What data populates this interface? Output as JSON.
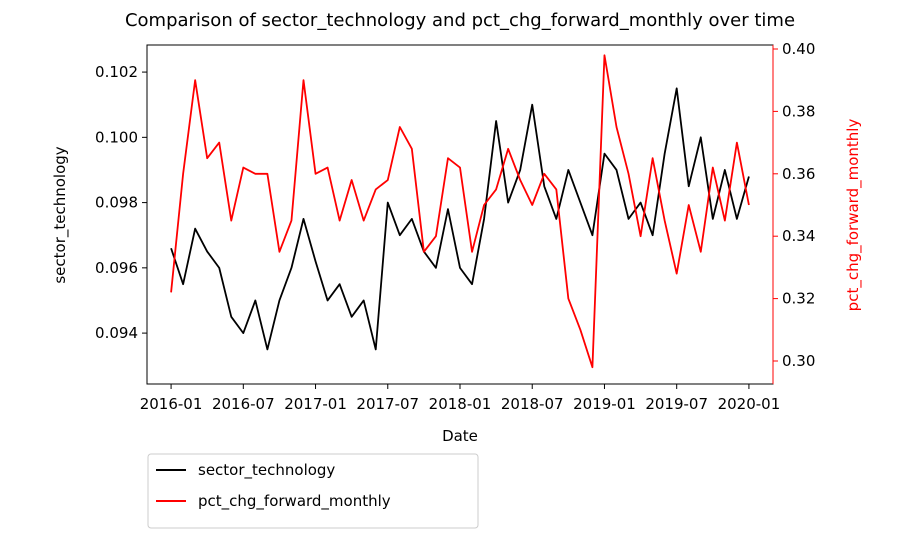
{
  "chart_data": {
    "type": "line",
    "title": "Comparison of sector_technology and pct_chg_forward_monthly over time",
    "x_label": "Date",
    "y_label": "sector_technology",
    "y2_label": "pct_chg_forward_monthly",
    "x": [
      "2016-01",
      "2016-02",
      "2016-03",
      "2016-04",
      "2016-05",
      "2016-06",
      "2016-07",
      "2016-08",
      "2016-09",
      "2016-10",
      "2016-11",
      "2016-12",
      "2017-01",
      "2017-02",
      "2017-03",
      "2017-04",
      "2017-05",
      "2017-06",
      "2017-07",
      "2017-08",
      "2017-09",
      "2017-10",
      "2017-11",
      "2017-12",
      "2018-01",
      "2018-02",
      "2018-03",
      "2018-04",
      "2018-05",
      "2018-06",
      "2018-07",
      "2018-08",
      "2018-09",
      "2018-10",
      "2018-11",
      "2018-12",
      "2019-01",
      "2019-02",
      "2019-03",
      "2019-04",
      "2019-05",
      "2019-06",
      "2019-07",
      "2019-08",
      "2019-09",
      "2019-10",
      "2019-11",
      "2019-12",
      "2020-01"
    ],
    "xlim": [
      "2015-11",
      "2020-03"
    ],
    "xticks": [
      "2016-01",
      "2016-07",
      "2017-01",
      "2017-07",
      "2018-01",
      "2018-07",
      "2019-01",
      "2019-07",
      "2020-01"
    ],
    "ylim": [
      0.09244,
      0.10283
    ],
    "yticks": [
      0.094,
      0.096,
      0.098,
      {
        "value": 0.1,
        "label": "0.100"
      },
      0.102
    ],
    "y2lim": [
      0.29263,
      0.40128
    ],
    "y2ticks": [
      {
        "value": 0.3,
        "label": "0.30"
      },
      0.32,
      0.34,
      0.36,
      0.38,
      {
        "value": 0.4,
        "label": "0.40"
      }
    ],
    "y2_color": "#ff0000",
    "legend": "below-left",
    "series": [
      {
        "name": "sector_technology",
        "color": "#000000",
        "axis": "y",
        "values": [
          0.0966,
          0.0955,
          0.0972,
          0.0965,
          0.096,
          0.0945,
          0.094,
          0.095,
          0.0935,
          0.095,
          0.096,
          0.0975,
          0.0962,
          0.095,
          0.0955,
          0.0945,
          0.095,
          0.0935,
          0.098,
          0.097,
          0.0975,
          0.0965,
          0.096,
          0.0978,
          0.096,
          0.0955,
          0.0975,
          0.1005,
          0.098,
          0.099,
          0.101,
          0.0985,
          0.0975,
          0.099,
          0.098,
          0.097,
          0.0995,
          0.099,
          0.0975,
          0.098,
          0.097,
          0.0995,
          0.1015,
          0.0985,
          0.1,
          0.0975,
          0.099,
          0.0975,
          0.0988
        ]
      },
      {
        "name": "pct_chg_forward_monthly",
        "color": "#ff0000",
        "axis": "y2",
        "values": [
          0.322,
          0.36,
          0.39,
          0.365,
          0.37,
          0.345,
          0.362,
          0.36,
          0.36,
          0.335,
          0.345,
          0.39,
          0.36,
          0.362,
          0.345,
          0.358,
          0.345,
          0.355,
          0.358,
          0.375,
          0.368,
          0.335,
          0.34,
          0.365,
          0.362,
          0.335,
          0.35,
          0.355,
          0.368,
          0.358,
          0.35,
          0.36,
          0.355,
          0.32,
          0.31,
          0.298,
          0.398,
          0.375,
          0.36,
          0.34,
          0.365,
          0.345,
          0.328,
          0.35,
          0.335,
          0.362,
          0.345,
          0.37,
          0.35
        ]
      }
    ]
  }
}
